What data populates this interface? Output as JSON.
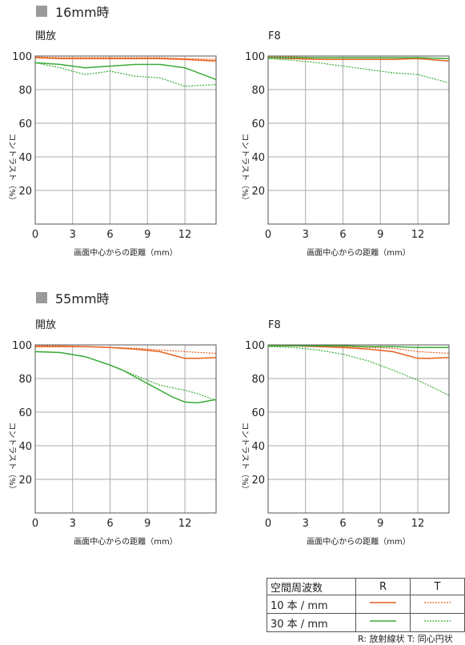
{
  "sections": [
    {
      "title": "16mm時"
    },
    {
      "title": "55mm時"
    }
  ],
  "colors": {
    "R": "#e8601c",
    "T": "#e8601c",
    "green": "#3aaa35",
    "grid": "#aaaaaa",
    "frame": "#555555"
  },
  "legend": {
    "header_label": "空間周波数",
    "col_r": "R",
    "col_t": "T",
    "row_10": "10 本 / mm",
    "row_30": "30 本 / mm",
    "note": "R: 放射線状  T: 同心円状"
  },
  "chart_data": [
    {
      "type": "line",
      "title": "開放",
      "xlabel": "画面中心からの距離（mm）",
      "ylabel": "コントラスト（%）",
      "xlim": [
        0,
        14.5
      ],
      "ylim": [
        0,
        100
      ],
      "xticks": [
        "0",
        "3",
        "6",
        "9",
        "12"
      ],
      "yticks": [
        "20",
        "40",
        "60",
        "80",
        "100"
      ],
      "grid": true,
      "series": [
        {
          "freq": "10",
          "dir": "R",
          "x": [
            0,
            2,
            4,
            6,
            8,
            10,
            12,
            14.5
          ],
          "y": [
            99,
            98.5,
            98.5,
            98.5,
            98.5,
            98.5,
            98,
            97
          ]
        },
        {
          "freq": "10",
          "dir": "T",
          "x": [
            0,
            2,
            4,
            6,
            8,
            10,
            12,
            14.5
          ],
          "y": [
            99.5,
            99,
            99,
            99,
            99,
            99,
            98.5,
            98
          ]
        },
        {
          "freq": "30",
          "dir": "R",
          "x": [
            0,
            2,
            4,
            6,
            8,
            10,
            12,
            14.5
          ],
          "y": [
            96,
            95,
            93,
            94,
            95,
            95,
            93,
            86
          ]
        },
        {
          "freq": "30",
          "dir": "T",
          "x": [
            0,
            2,
            4,
            6,
            8,
            10,
            12,
            14.5
          ],
          "y": [
            96,
            93,
            89,
            91,
            88,
            87,
            82,
            83
          ]
        }
      ]
    },
    {
      "type": "line",
      "title": "F8",
      "xlabel": "画面中心からの距離（mm）",
      "ylabel": "コントラスト（%）",
      "xlim": [
        0,
        14.5
      ],
      "ylim": [
        0,
        100
      ],
      "xticks": [
        "0",
        "3",
        "6",
        "9",
        "12"
      ],
      "yticks": [
        "20",
        "40",
        "60",
        "80",
        "100"
      ],
      "grid": true,
      "series": [
        {
          "freq": "10",
          "dir": "R",
          "x": [
            0,
            2,
            4,
            6,
            8,
            10,
            12,
            14.5
          ],
          "y": [
            99,
            98.5,
            98,
            98,
            98,
            98,
            98.5,
            97
          ]
        },
        {
          "freq": "10",
          "dir": "T",
          "x": [
            0,
            2,
            4,
            6,
            8,
            10,
            12,
            14.5
          ],
          "y": [
            99.5,
            99.5,
            99,
            99,
            99,
            99,
            99,
            98.5
          ]
        },
        {
          "freq": "30",
          "dir": "R",
          "x": [
            0,
            2,
            4,
            6,
            8,
            10,
            12,
            14.5
          ],
          "y": [
            99,
            99,
            99,
            99,
            99,
            99,
            99,
            98.5
          ]
        },
        {
          "freq": "30",
          "dir": "T",
          "x": [
            0,
            2,
            4,
            6,
            8,
            10,
            12,
            14.5
          ],
          "y": [
            98.5,
            97.5,
            96,
            94,
            92,
            90,
            89,
            84
          ]
        }
      ]
    },
    {
      "type": "line",
      "title": "開放",
      "xlabel": "画面中心からの距離（mm）",
      "ylabel": "コントラスト（%）",
      "xlim": [
        0,
        14.5
      ],
      "ylim": [
        0,
        100
      ],
      "xticks": [
        "0",
        "3",
        "6",
        "9",
        "12"
      ],
      "yticks": [
        "20",
        "40",
        "60",
        "80",
        "100"
      ],
      "grid": true,
      "series": [
        {
          "freq": "10",
          "dir": "R",
          "x": [
            0,
            2,
            4,
            6,
            8,
            10,
            11,
            12,
            13,
            14.5
          ],
          "y": [
            99,
            99,
            99,
            98.5,
            97.5,
            96,
            94,
            92,
            92,
            92.5
          ]
        },
        {
          "freq": "10",
          "dir": "T",
          "x": [
            0,
            2,
            4,
            6,
            8,
            10,
            12,
            14.5
          ],
          "y": [
            99.5,
            99.5,
            99,
            98.5,
            98,
            97,
            96,
            95
          ]
        },
        {
          "freq": "30",
          "dir": "R",
          "x": [
            0,
            2,
            4,
            6,
            7,
            8,
            9,
            10,
            11,
            12,
            13,
            14.5
          ],
          "y": [
            96,
            95.5,
            93,
            88,
            85,
            81,
            77,
            73,
            69,
            66,
            65.5,
            67.5
          ]
        },
        {
          "freq": "30",
          "dir": "T",
          "x": [
            0,
            2,
            4,
            6,
            8,
            10,
            12,
            13,
            14.5
          ],
          "y": [
            96,
            95.5,
            93,
            88,
            82,
            76,
            73,
            71,
            67
          ]
        }
      ]
    },
    {
      "type": "line",
      "title": "F8",
      "xlabel": "画面中心からの距離（mm）",
      "ylabel": "コントラスト（%）",
      "xlim": [
        0,
        14.5
      ],
      "ylim": [
        0,
        100
      ],
      "xticks": [
        "0",
        "3",
        "6",
        "9",
        "12"
      ],
      "yticks": [
        "20",
        "40",
        "60",
        "80",
        "100"
      ],
      "grid": true,
      "series": [
        {
          "freq": "10",
          "dir": "R",
          "x": [
            0,
            2,
            4,
            6,
            8,
            10,
            11,
            12,
            13,
            14.5
          ],
          "y": [
            99.5,
            99.5,
            99,
            98.5,
            97.5,
            96,
            94,
            92,
            92,
            92.5
          ]
        },
        {
          "freq": "10",
          "dir": "T",
          "x": [
            0,
            2,
            4,
            6,
            8,
            10,
            12,
            14.5
          ],
          "y": [
            99.5,
            99.5,
            99,
            99,
            98.5,
            98,
            96,
            95
          ]
        },
        {
          "freq": "30",
          "dir": "R",
          "x": [
            0,
            2,
            4,
            6,
            8,
            10,
            12,
            14.5
          ],
          "y": [
            99.5,
            99.5,
            99.5,
            99.5,
            99,
            99,
            98.5,
            98.5
          ]
        },
        {
          "freq": "30",
          "dir": "T",
          "x": [
            0,
            2,
            4,
            6,
            8,
            10,
            12,
            14.5
          ],
          "y": [
            99,
            98.5,
            97,
            94.5,
            90.5,
            85,
            79,
            70
          ]
        }
      ]
    }
  ]
}
